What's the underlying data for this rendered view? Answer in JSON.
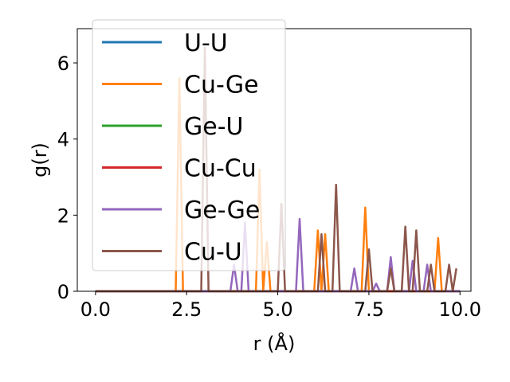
{
  "chart_data": {
    "type": "line",
    "xlabel": "r (Å)",
    "ylabel": "g(r)",
    "xlim": [
      -0.5,
      10.3
    ],
    "ylim": [
      0,
      6.9
    ],
    "xticks": [
      "0.0",
      "2.5",
      "5.0",
      "7.5",
      "10.0"
    ],
    "yticks": [
      "0",
      "2",
      "4",
      "6"
    ],
    "grid": false,
    "legend_position": "upper-left",
    "series": [
      {
        "name": "U-U",
        "color": "#1f77b4",
        "points": [
          [
            0,
            0
          ],
          [
            10,
            0
          ]
        ]
      },
      {
        "name": "Cu-Ge",
        "color": "#ff7f0e",
        "points": [
          [
            0,
            0
          ],
          [
            2.2,
            0
          ],
          [
            2.3,
            5.6
          ],
          [
            2.4,
            0
          ],
          [
            4.4,
            0
          ],
          [
            4.5,
            3.2
          ],
          [
            4.6,
            0
          ],
          [
            4.7,
            1.3
          ],
          [
            4.8,
            0
          ],
          [
            6.0,
            0
          ],
          [
            6.1,
            1.6
          ],
          [
            6.2,
            0
          ],
          [
            6.3,
            1.5
          ],
          [
            6.4,
            0
          ],
          [
            7.3,
            0
          ],
          [
            7.4,
            2.2
          ],
          [
            7.5,
            0
          ],
          [
            9.3,
            0
          ],
          [
            9.4,
            1.4
          ],
          [
            9.5,
            0
          ],
          [
            10,
            0
          ]
        ]
      },
      {
        "name": "Ge-U",
        "color": "#2ca02c",
        "points": [
          [
            0,
            0
          ],
          [
            10,
            0
          ]
        ]
      },
      {
        "name": "Cu-Cu",
        "color": "#d62728",
        "points": [
          [
            0,
            0
          ],
          [
            10,
            0
          ]
        ]
      },
      {
        "name": "Ge-Ge",
        "color": "#9467bd",
        "points": [
          [
            0,
            0
          ],
          [
            3.7,
            0
          ],
          [
            3.8,
            0.7
          ],
          [
            3.9,
            0
          ],
          [
            4.0,
            0
          ],
          [
            4.1,
            1.8
          ],
          [
            4.2,
            0
          ],
          [
            5.5,
            0
          ],
          [
            5.6,
            1.9
          ],
          [
            5.7,
            0
          ],
          [
            7.0,
            0
          ],
          [
            7.1,
            0.6
          ],
          [
            7.2,
            0
          ],
          [
            7.6,
            0
          ],
          [
            7.7,
            0.2
          ],
          [
            7.8,
            0
          ],
          [
            8.0,
            0
          ],
          [
            8.1,
            0.9
          ],
          [
            8.2,
            0
          ],
          [
            8.6,
            0
          ],
          [
            8.7,
            0.8
          ],
          [
            8.8,
            0
          ],
          [
            9.0,
            0
          ],
          [
            9.1,
            0.7
          ],
          [
            9.2,
            0
          ],
          [
            10,
            0
          ]
        ]
      },
      {
        "name": "Cu-U",
        "color": "#8c564b",
        "points": [
          [
            0,
            0
          ],
          [
            2.9,
            0
          ],
          [
            3.0,
            6.4
          ],
          [
            3.1,
            0
          ],
          [
            5.0,
            0
          ],
          [
            5.1,
            2.3
          ],
          [
            5.2,
            0
          ],
          [
            6.1,
            0
          ],
          [
            6.2,
            1.5
          ],
          [
            6.3,
            0
          ],
          [
            6.5,
            0
          ],
          [
            6.6,
            2.8
          ],
          [
            6.7,
            0
          ],
          [
            7.4,
            0
          ],
          [
            7.5,
            1.1
          ],
          [
            7.6,
            0
          ],
          [
            8.0,
            0
          ],
          [
            8.1,
            0.6
          ],
          [
            8.2,
            0
          ],
          [
            8.4,
            0
          ],
          [
            8.5,
            1.7
          ],
          [
            8.6,
            0
          ],
          [
            8.7,
            0
          ],
          [
            8.8,
            1.6
          ],
          [
            8.9,
            0
          ],
          [
            9.1,
            0
          ],
          [
            9.2,
            0.7
          ],
          [
            9.3,
            0
          ],
          [
            9.6,
            0
          ],
          [
            9.7,
            0.7
          ],
          [
            9.8,
            0
          ],
          [
            9.9,
            0.6
          ]
        ]
      }
    ]
  }
}
